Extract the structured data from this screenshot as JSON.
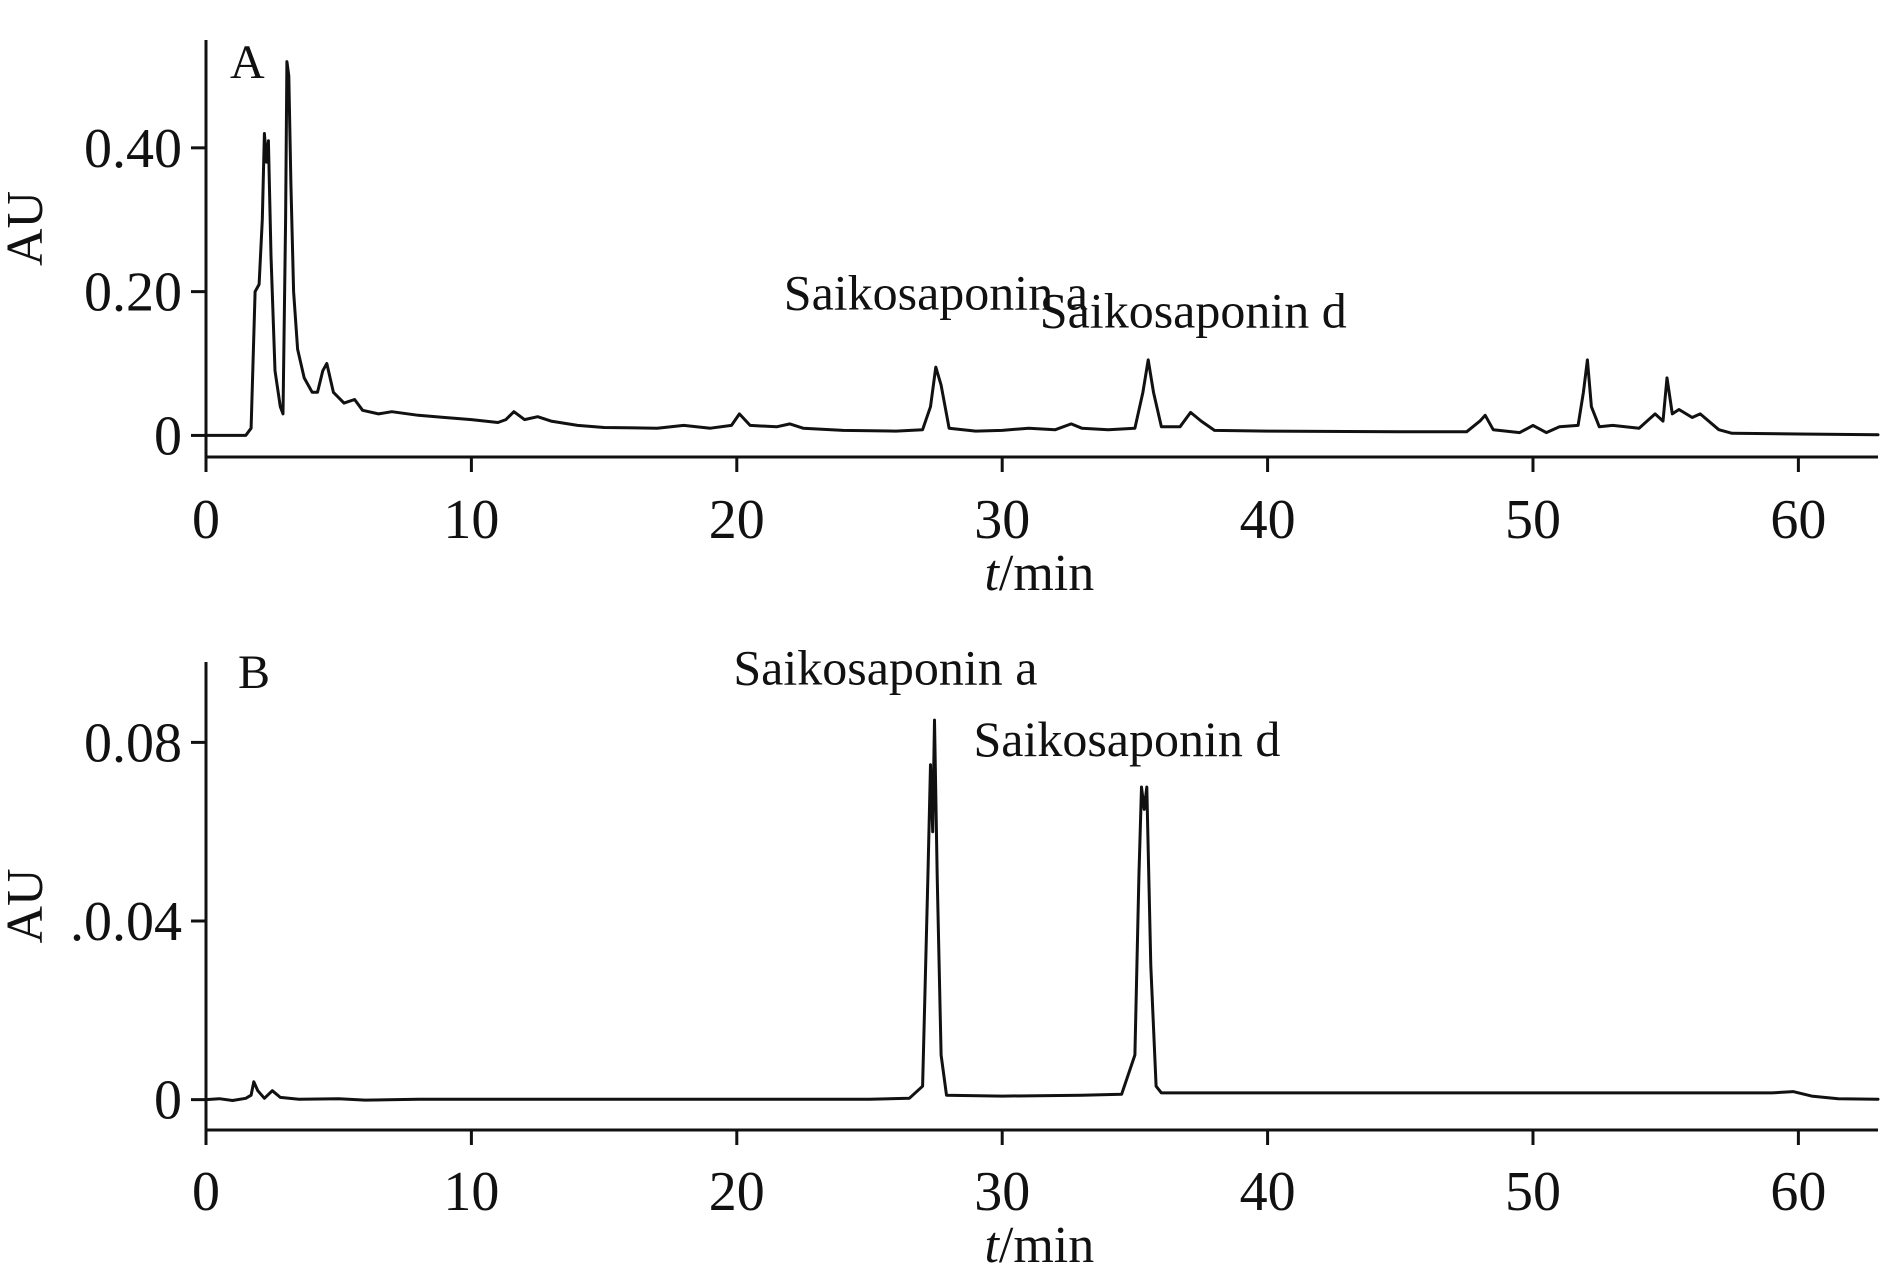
{
  "chart_data": [
    {
      "type": "line",
      "panel_label": "A",
      "xlabel_italic": "t",
      "xlabel_rest": "/min",
      "ylabel": "AU",
      "xlim": [
        0,
        63
      ],
      "ylim": [
        -0.03,
        0.55
      ],
      "x_ticks": [
        0,
        10,
        20,
        30,
        40,
        50,
        60
      ],
      "x_tick_labels": [
        "0",
        "10",
        "20",
        "30",
        "40",
        "50",
        "60"
      ],
      "y_ticks": [
        0,
        0.2,
        0.4
      ],
      "y_tick_labels": [
        "0",
        "0.20",
        "0.40"
      ],
      "baseline": 0,
      "series": [
        {
          "points": [
            [
              0,
              0
            ],
            [
              1.5,
              0
            ],
            [
              1.7,
              0.01
            ],
            [
              1.85,
              0.2
            ],
            [
              2.0,
              0.21
            ],
            [
              2.12,
              0.3
            ],
            [
              2.2,
              0.42
            ],
            [
              2.28,
              0.38
            ],
            [
              2.35,
              0.41
            ],
            [
              2.45,
              0.25
            ],
            [
              2.6,
              0.09
            ],
            [
              2.8,
              0.04
            ],
            [
              2.9,
              0.03
            ],
            [
              3.0,
              0.3
            ],
            [
              3.05,
              0.52
            ],
            [
              3.12,
              0.5
            ],
            [
              3.2,
              0.35
            ],
            [
              3.3,
              0.2
            ],
            [
              3.45,
              0.12
            ],
            [
              3.7,
              0.08
            ],
            [
              4.0,
              0.06
            ],
            [
              4.2,
              0.06
            ],
            [
              4.4,
              0.09
            ],
            [
              4.55,
              0.1
            ],
            [
              4.8,
              0.06
            ],
            [
              5.2,
              0.045
            ],
            [
              5.6,
              0.05
            ],
            [
              5.9,
              0.035
            ],
            [
              6.5,
              0.03
            ],
            [
              7.0,
              0.033
            ],
            [
              8.0,
              0.028
            ],
            [
              9.0,
              0.025
            ],
            [
              10.0,
              0.022
            ],
            [
              11.0,
              0.018
            ],
            [
              11.3,
              0.022
            ],
            [
              11.6,
              0.033
            ],
            [
              12.0,
              0.022
            ],
            [
              12.5,
              0.026
            ],
            [
              13.0,
              0.02
            ],
            [
              14.0,
              0.014
            ],
            [
              15.0,
              0.011
            ],
            [
              17.0,
              0.01
            ],
            [
              18.0,
              0.014
            ],
            [
              19.0,
              0.01
            ],
            [
              19.8,
              0.014
            ],
            [
              20.1,
              0.03
            ],
            [
              20.5,
              0.014
            ],
            [
              21.5,
              0.012
            ],
            [
              22.0,
              0.016
            ],
            [
              22.5,
              0.01
            ],
            [
              24.0,
              0.007
            ],
            [
              26.0,
              0.006
            ],
            [
              27.0,
              0.008
            ],
            [
              27.3,
              0.04
            ],
            [
              27.5,
              0.095
            ],
            [
              27.7,
              0.07
            ],
            [
              28.0,
              0.01
            ],
            [
              29.0,
              0.006
            ],
            [
              30.0,
              0.007
            ],
            [
              31.0,
              0.01
            ],
            [
              32.0,
              0.008
            ],
            [
              32.6,
              0.016
            ],
            [
              33.0,
              0.01
            ],
            [
              34.0,
              0.008
            ],
            [
              35.0,
              0.01
            ],
            [
              35.3,
              0.06
            ],
            [
              35.5,
              0.105
            ],
            [
              35.7,
              0.06
            ],
            [
              36.0,
              0.012
            ],
            [
              36.7,
              0.012
            ],
            [
              37.1,
              0.032
            ],
            [
              37.5,
              0.02
            ],
            [
              38.0,
              0.007
            ],
            [
              40.0,
              0.006
            ],
            [
              45.0,
              0.005
            ],
            [
              47.5,
              0.005
            ],
            [
              48.0,
              0.02
            ],
            [
              48.2,
              0.028
            ],
            [
              48.5,
              0.008
            ],
            [
              49.5,
              0.004
            ],
            [
              50.0,
              0.014
            ],
            [
              50.5,
              0.004
            ],
            [
              51.0,
              0.012
            ],
            [
              51.7,
              0.014
            ],
            [
              51.9,
              0.06
            ],
            [
              52.05,
              0.105
            ],
            [
              52.2,
              0.04
            ],
            [
              52.5,
              0.012
            ],
            [
              53.0,
              0.014
            ],
            [
              54.0,
              0.01
            ],
            [
              54.6,
              0.03
            ],
            [
              54.9,
              0.02
            ],
            [
              55.05,
              0.08
            ],
            [
              55.25,
              0.03
            ],
            [
              55.5,
              0.036
            ],
            [
              56.0,
              0.025
            ],
            [
              56.3,
              0.03
            ],
            [
              57.0,
              0.008
            ],
            [
              57.5,
              0.003
            ],
            [
              60.0,
              0.002
            ],
            [
              63.0,
              0.001
            ]
          ]
        }
      ],
      "annotations": [
        {
          "text": "Saikosaponin a",
          "x": 27.5,
          "y": 0.175
        },
        {
          "text": "Saikosaponin d",
          "x": 37.2,
          "y": 0.15
        }
      ]
    },
    {
      "type": "line",
      "panel_label": "B",
      "xlabel_italic": "t",
      "xlabel_rest": "/min",
      "ylabel": "AU",
      "xlim": [
        0,
        63
      ],
      "ylim": [
        -0.0068,
        0.098
      ],
      "x_ticks": [
        0,
        10,
        20,
        30,
        40,
        50,
        60
      ],
      "x_tick_labels": [
        "0",
        "10",
        "20",
        "30",
        "40",
        "50",
        "60"
      ],
      "y_ticks": [
        0,
        0.04,
        0.08
      ],
      "y_tick_labels": [
        "0",
        ".0.04",
        "0.08"
      ],
      "baseline": 0,
      "series": [
        {
          "points": [
            [
              0,
              0
            ],
            [
              0.5,
              0.0002
            ],
            [
              1.0,
              -0.0002
            ],
            [
              1.5,
              0.0003
            ],
            [
              1.7,
              0.001
            ],
            [
              1.8,
              0.004
            ],
            [
              1.95,
              0.002
            ],
            [
              2.2,
              0.0003
            ],
            [
              2.5,
              0.002
            ],
            [
              2.8,
              0.0005
            ],
            [
              3.5,
              0.0001
            ],
            [
              5.0,
              0.0002
            ],
            [
              6.0,
              -0.0001
            ],
            [
              8.0,
              0.0001
            ],
            [
              15.0,
              0.0001
            ],
            [
              25.0,
              0.0001
            ],
            [
              26.5,
              0.0003
            ],
            [
              27.0,
              0.003
            ],
            [
              27.2,
              0.05
            ],
            [
              27.3,
              0.075
            ],
            [
              27.38,
              0.06
            ],
            [
              27.45,
              0.085
            ],
            [
              27.55,
              0.05
            ],
            [
              27.7,
              0.01
            ],
            [
              27.9,
              0.001
            ],
            [
              30.0,
              0.0008
            ],
            [
              33.0,
              0.001
            ],
            [
              34.5,
              0.0012
            ],
            [
              35.0,
              0.01
            ],
            [
              35.15,
              0.05
            ],
            [
              35.25,
              0.07
            ],
            [
              35.35,
              0.065
            ],
            [
              35.45,
              0.07
            ],
            [
              35.6,
              0.03
            ],
            [
              35.8,
              0.003
            ],
            [
              36.0,
              0.0015
            ],
            [
              40.0,
              0.0015
            ],
            [
              45.0,
              0.0015
            ],
            [
              50.0,
              0.0015
            ],
            [
              55.0,
              0.0015
            ],
            [
              59.0,
              0.0015
            ],
            [
              59.8,
              0.0018
            ],
            [
              60.5,
              0.0008
            ],
            [
              61.5,
              0.0002
            ],
            [
              63.0,
              0.0001
            ]
          ]
        }
      ],
      "annotations": [
        {
          "text": "Saikosaponin a",
          "x": 25.6,
          "y": 0.093
        },
        {
          "text": "Saikosaponin d",
          "x": 34.7,
          "y": 0.077
        }
      ]
    }
  ]
}
